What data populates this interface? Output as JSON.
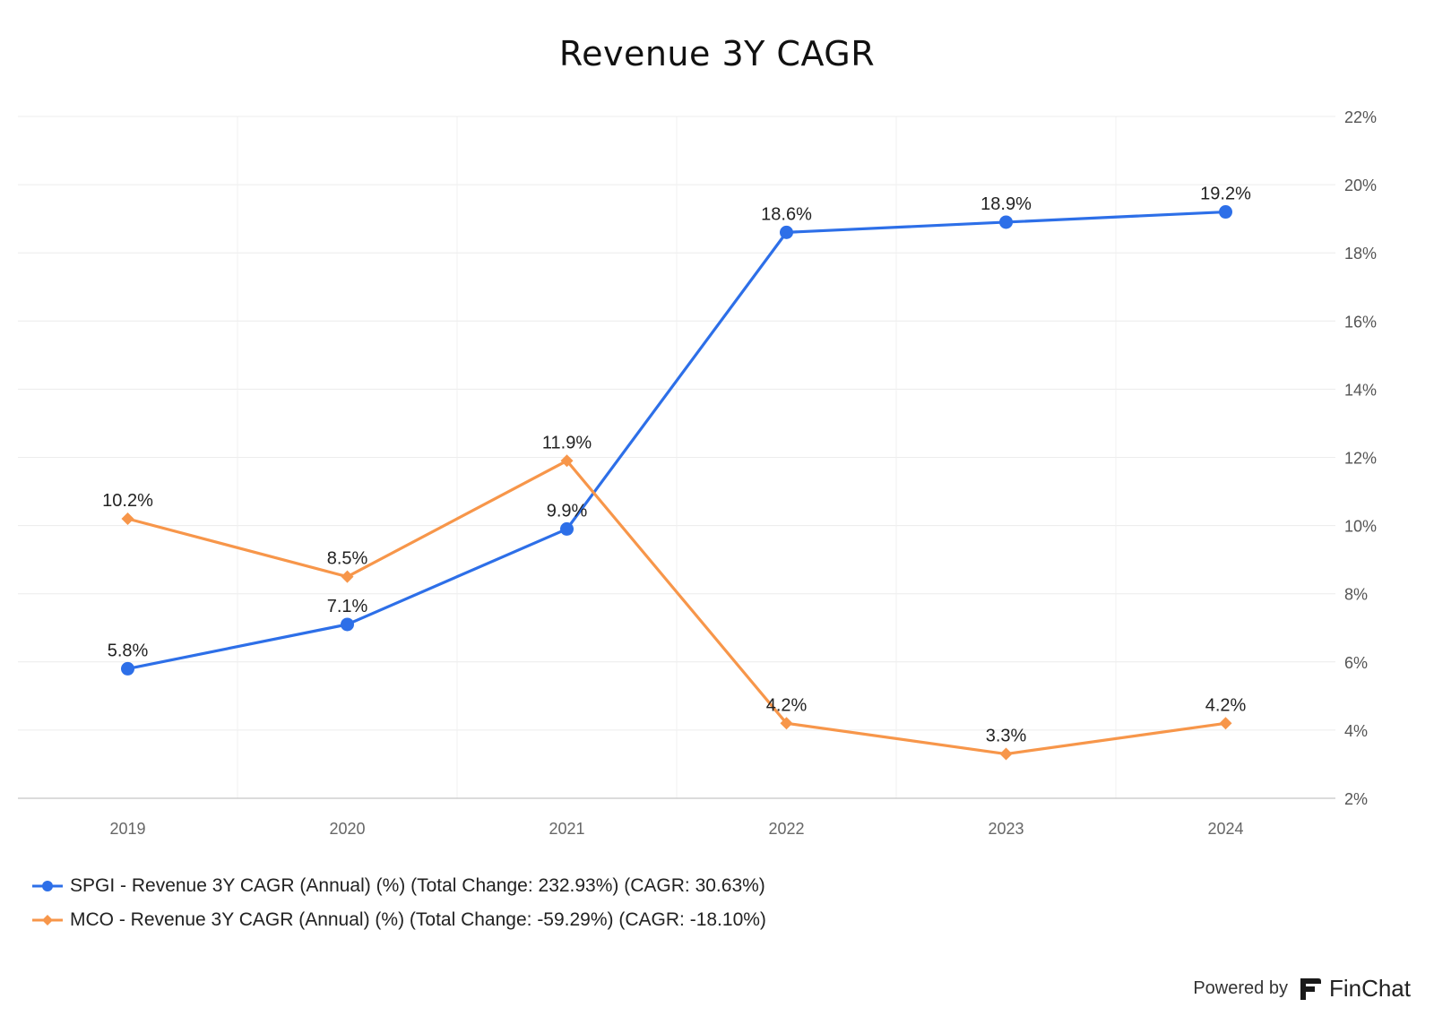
{
  "chart_data": {
    "type": "line",
    "title": "Revenue 3Y CAGR",
    "categories": [
      "2019",
      "2020",
      "2021",
      "2022",
      "2023",
      "2024"
    ],
    "y_ticks": [
      "22%",
      "20%",
      "18%",
      "16%",
      "14%",
      "12%",
      "10%",
      "8%",
      "6%",
      "4%",
      "2%"
    ],
    "ylim": [
      2,
      22
    ],
    "y_axis_position": "right",
    "grid": true,
    "legend_position": "bottom-left",
    "series": [
      {
        "name": "SPGI - Revenue 3Y CAGR (Annual) (%) (Total Change: 232.93%) (CAGR: 30.63%)",
        "values": [
          5.8,
          7.1,
          9.9,
          18.6,
          18.9,
          19.2
        ],
        "labels": [
          "5.8%",
          "7.1%",
          "9.9%",
          "18.6%",
          "18.9%",
          "19.2%"
        ],
        "color": "#2d6fe8",
        "marker": "circle"
      },
      {
        "name": "MCO - Revenue 3Y CAGR (Annual) (%) (Total Change: -59.29%) (CAGR: -18.10%)",
        "values": [
          10.2,
          8.5,
          11.9,
          4.2,
          3.3,
          4.2
        ],
        "labels": [
          "10.2%",
          "8.5%",
          "11.9%",
          "4.2%",
          "3.3%",
          "4.2%"
        ],
        "color": "#f7964a",
        "marker": "diamond"
      }
    ]
  },
  "footer": {
    "powered_by": "Powered by",
    "brand": "FinChat"
  }
}
